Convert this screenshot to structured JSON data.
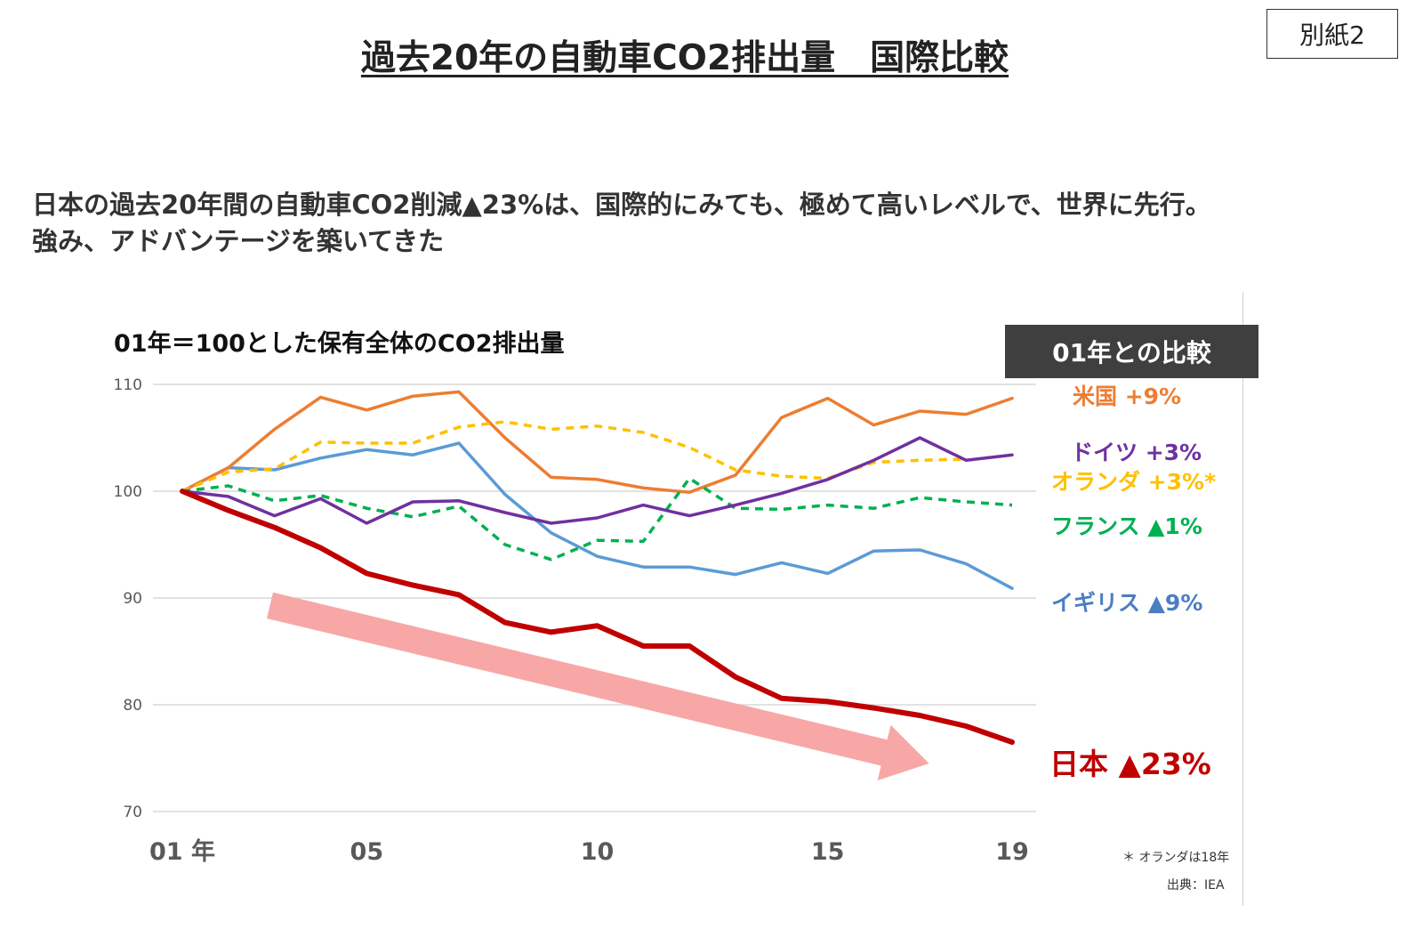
{
  "page": {
    "title": "過去20年の自動車CO2排出量　国際比較",
    "tag": "別紙2",
    "summary_line1": "日本の過去20年間の自動車CO2削減▲23%は、国際的にみても、極めて高いレベルで、世界に先行。",
    "summary_line2": "強み、アドバンテージを築いてきた"
  },
  "colors": {
    "usa": "#ED7D31",
    "germany": "#7030A0",
    "netherlands": "#FFC000",
    "france": "#00B050",
    "uk": "#5B9BD5",
    "japan": "#C00000",
    "arrow": "#F8A7A7",
    "grid": "#D9D9D9",
    "box": "#3F3F3F"
  },
  "chart_data": {
    "type": "line",
    "title": "01年＝100とした保有全体のCO2排出量",
    "comparison_header": "01年との比較",
    "x": [
      1,
      2,
      3,
      4,
      5,
      6,
      7,
      8,
      9,
      10,
      11,
      12,
      13,
      14,
      15,
      16,
      17,
      18,
      19
    ],
    "x_ticks": [
      {
        "value": 1,
        "label": "01 年"
      },
      {
        "value": 5,
        "label": "05"
      },
      {
        "value": 10,
        "label": "10"
      },
      {
        "value": 15,
        "label": "15"
      },
      {
        "value": 19,
        "label": "19"
      }
    ],
    "ylim": [
      70,
      110
    ],
    "y_ticks": [
      70,
      80,
      90,
      100,
      110
    ],
    "grid": true,
    "series": [
      {
        "key": "usa",
        "name": "米国 +9%",
        "style": "solid",
        "values": [
          100,
          102.2,
          105.8,
          108.8,
          107.6,
          108.9,
          109.3,
          105,
          101.3,
          101.1,
          100.3,
          99.9,
          101.5,
          106.9,
          108.7,
          106.2,
          107.5,
          107.2,
          108.7
        ]
      },
      {
        "key": "germany",
        "name": "ドイツ +3%",
        "style": "solid",
        "values": [
          100,
          99.5,
          97.7,
          99.3,
          97,
          99,
          99.1,
          98,
          97,
          97.5,
          98.7,
          97.7,
          98.7,
          99.8,
          101.1,
          102.9,
          105,
          102.9,
          103.4
        ]
      },
      {
        "key": "netherlands",
        "name": "オランダ +3%*",
        "style": "dashed",
        "values": [
          100,
          101.8,
          102.1,
          104.6,
          104.5,
          104.5,
          106,
          106.5,
          105.8,
          106.1,
          105.5,
          104.1,
          102,
          101.4,
          101.2,
          102.7,
          102.9,
          103,
          null
        ]
      },
      {
        "key": "france",
        "name": "フランス ▲1%",
        "style": "dashed",
        "values": [
          100,
          100.5,
          99.1,
          99.6,
          98.4,
          97.6,
          98.6,
          95,
          93.6,
          95.4,
          95.3,
          101.2,
          98.4,
          98.3,
          98.7,
          98.4,
          99.4,
          99,
          98.7
        ]
      },
      {
        "key": "uk",
        "name": "イギリス ▲9%",
        "style": "solid",
        "values": [
          100,
          102.2,
          102,
          103.1,
          103.9,
          103.4,
          104.5,
          99.7,
          96.1,
          93.9,
          92.9,
          92.9,
          92.2,
          93.3,
          92.3,
          94.4,
          94.5,
          93.2,
          90.9
        ]
      },
      {
        "key": "japan",
        "name": "日本 ▲23%",
        "style": "solid-bold",
        "values": [
          100,
          98.2,
          96.6,
          94.7,
          92.3,
          91.2,
          90.3,
          87.7,
          86.8,
          87.4,
          85.5,
          85.5,
          82.6,
          80.6,
          80.3,
          79.7,
          79,
          78,
          76.5
        ]
      }
    ],
    "annotations": {
      "note": "＊ オランダは18年",
      "source": "出典：IEA"
    }
  }
}
